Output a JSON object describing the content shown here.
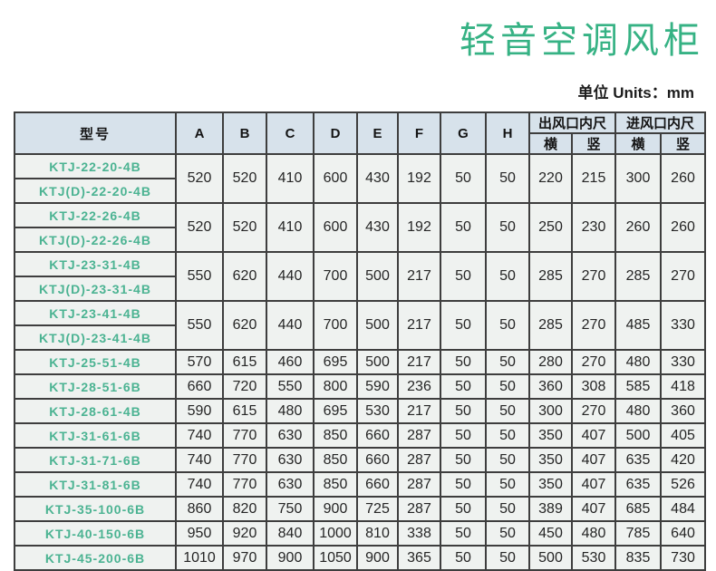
{
  "page": {
    "title": "轻音空调风柜",
    "units_label": "单位 Units：mm"
  },
  "colors": {
    "title_green": "#36b284",
    "model_green": "#4bb392",
    "header_bg": "#d7e2eb",
    "cell_bg": "#eff2f0",
    "border": "#3e3e3e"
  },
  "table": {
    "headers": {
      "model": "型号",
      "dims": [
        "A",
        "B",
        "C",
        "D",
        "E",
        "F",
        "G",
        "H"
      ],
      "outlet_group": "出风口内尺",
      "inlet_group": "进风口内尺",
      "sub_cols": [
        "横",
        "竖",
        "横",
        "竖"
      ]
    },
    "rows": [
      {
        "models": [
          "KTJ-22-20-4B",
          "KTJ(D)-22-20-4B"
        ],
        "values": [
          520,
          520,
          410,
          600,
          430,
          192,
          50,
          50,
          220,
          215,
          300,
          260
        ]
      },
      {
        "models": [
          "KTJ-22-26-4B",
          "KTJ(D)-22-26-4B"
        ],
        "values": [
          520,
          520,
          410,
          600,
          430,
          192,
          50,
          50,
          250,
          230,
          260,
          260
        ]
      },
      {
        "models": [
          "KTJ-23-31-4B",
          "KTJ(D)-23-31-4B"
        ],
        "values": [
          550,
          620,
          440,
          700,
          500,
          217,
          50,
          50,
          285,
          270,
          285,
          270
        ]
      },
      {
        "models": [
          "KTJ-23-41-4B",
          "KTJ(D)-23-41-4B"
        ],
        "values": [
          550,
          620,
          440,
          700,
          500,
          217,
          50,
          50,
          285,
          270,
          485,
          330
        ]
      },
      {
        "models": [
          "KTJ-25-51-4B"
        ],
        "values": [
          570,
          615,
          460,
          695,
          500,
          217,
          50,
          50,
          280,
          270,
          480,
          330
        ]
      },
      {
        "models": [
          "KTJ-28-51-6B"
        ],
        "values": [
          660,
          720,
          550,
          800,
          590,
          236,
          50,
          50,
          360,
          308,
          585,
          418
        ]
      },
      {
        "models": [
          "KTJ-28-61-4B"
        ],
        "values": [
          590,
          615,
          480,
          695,
          530,
          217,
          50,
          50,
          300,
          270,
          480,
          360
        ]
      },
      {
        "models": [
          "KTJ-31-61-6B"
        ],
        "values": [
          740,
          770,
          630,
          850,
          660,
          287,
          50,
          50,
          350,
          407,
          500,
          405
        ]
      },
      {
        "models": [
          "KTJ-31-71-6B"
        ],
        "values": [
          740,
          770,
          630,
          850,
          660,
          287,
          50,
          50,
          350,
          407,
          635,
          420
        ]
      },
      {
        "models": [
          "KTJ-31-81-6B"
        ],
        "values": [
          740,
          770,
          630,
          850,
          660,
          287,
          50,
          50,
          350,
          407,
          635,
          526
        ]
      },
      {
        "models": [
          "KTJ-35-100-6B"
        ],
        "values": [
          860,
          820,
          750,
          900,
          725,
          287,
          50,
          50,
          389,
          407,
          685,
          484
        ]
      },
      {
        "models": [
          "KTJ-40-150-6B"
        ],
        "values": [
          950,
          920,
          840,
          1000,
          810,
          338,
          50,
          50,
          450,
          480,
          785,
          640
        ]
      },
      {
        "models": [
          "KTJ-45-200-6B"
        ],
        "values": [
          1010,
          970,
          900,
          1050,
          900,
          365,
          50,
          50,
          500,
          530,
          835,
          730
        ]
      }
    ]
  }
}
